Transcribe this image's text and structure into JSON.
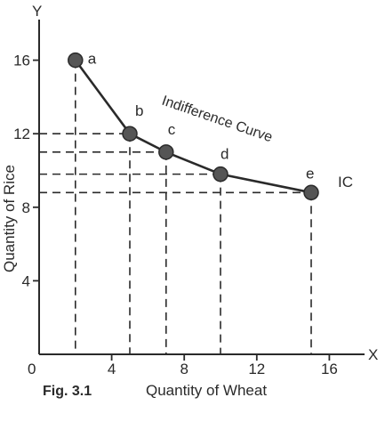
{
  "chart_data": {
    "type": "line",
    "xlabel": "Quantity of Wheat",
    "ylabel": "Quantity of Rice",
    "x_axis_letter": "X",
    "y_axis_letter": "Y",
    "origin_label": "0",
    "caption": "Fig. 3.1",
    "xlim": [
      0,
      17.5
    ],
    "ylim": [
      0,
      17.5
    ],
    "xticks": [
      4,
      8,
      12,
      16
    ],
    "yticks": [
      4,
      8,
      12,
      16
    ],
    "grid": false,
    "series": [
      {
        "name": "IC",
        "points": [
          {
            "label": "a",
            "x": 2,
            "y": 16
          },
          {
            "label": "b",
            "x": 5,
            "y": 12
          },
          {
            "label": "c",
            "x": 7,
            "y": 11
          },
          {
            "label": "d",
            "x": 10,
            "y": 9.8
          },
          {
            "label": "e",
            "x": 15,
            "y": 8.8
          }
        ]
      }
    ],
    "annotations": [
      {
        "text": "Indifference Curve"
      }
    ],
    "colors": {
      "ink": "#2a2a2a",
      "marker": "#555555"
    }
  }
}
